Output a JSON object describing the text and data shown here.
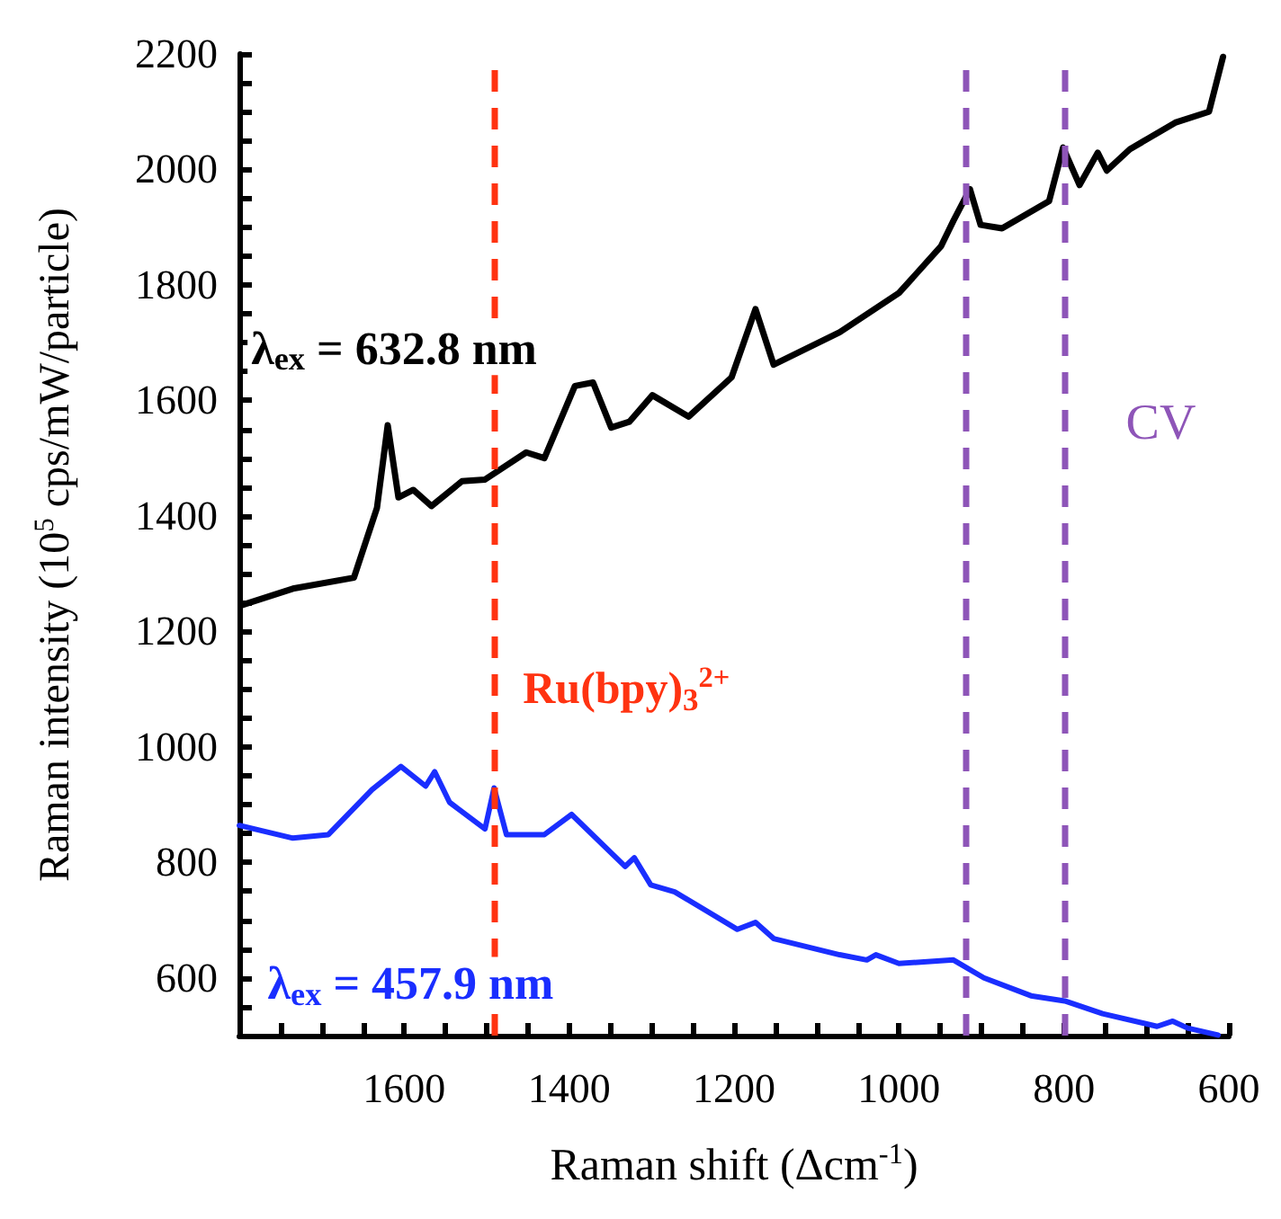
{
  "chart_data": {
    "type": "line",
    "xlabel": "Raman shift (Δcm$^{-1}$)",
    "ylabel": "Raman intensity (10$^{5}$ cps/mW/particle)",
    "xlim": [
      1800,
      600
    ],
    "ylim": [
      500,
      2200
    ],
    "xticks": [
      {
        "value": 1750,
        "label": null
      },
      {
        "value": 1700,
        "label": null
      },
      {
        "value": 1650,
        "label": null
      },
      1600,
      {
        "value": 1550,
        "label": null
      },
      {
        "value": 1500,
        "label": null
      },
      {
        "value": 1450,
        "label": null
      },
      1400,
      {
        "value": 1350,
        "label": null
      },
      {
        "value": 1300,
        "label": null
      },
      {
        "value": 1250,
        "label": null
      },
      1200,
      {
        "value": 1150,
        "label": null
      },
      {
        "value": 1100,
        "label": null
      },
      {
        "value": 1050,
        "label": null
      },
      1000,
      {
        "value": 950,
        "label": null
      },
      {
        "value": 900,
        "label": null
      },
      {
        "value": 850,
        "label": null
      },
      800,
      {
        "value": 750,
        "label": null
      },
      {
        "value": 700,
        "label": null
      },
      {
        "value": 650,
        "label": null
      },
      600
    ],
    "yticks": [
      {
        "value": 550,
        "label": null
      },
      600,
      {
        "value": 650,
        "label": null
      },
      {
        "value": 700,
        "label": null
      },
      {
        "value": 750,
        "label": null
      },
      800,
      {
        "value": 850,
        "label": null
      },
      {
        "value": 900,
        "label": null
      },
      {
        "value": 950,
        "label": null
      },
      1000,
      {
        "value": 1050,
        "label": null
      },
      {
        "value": 1100,
        "label": null
      },
      {
        "value": 1150,
        "label": null
      },
      1200,
      {
        "value": 1250,
        "label": null
      },
      {
        "value": 1300,
        "label": null
      },
      {
        "value": 1350,
        "label": null
      },
      1400,
      {
        "value": 1450,
        "label": null
      },
      {
        "value": 1500,
        "label": null
      },
      {
        "value": 1550,
        "label": null
      },
      1600,
      {
        "value": 1650,
        "label": null
      },
      {
        "value": 1700,
        "label": null
      },
      {
        "value": 1750,
        "label": null
      },
      1800,
      {
        "value": 1850,
        "label": null
      },
      {
        "value": 1900,
        "label": null
      },
      {
        "value": 1950,
        "label": null
      },
      2000,
      {
        "value": 2050,
        "label": null
      },
      {
        "value": 2100,
        "label": null
      },
      {
        "value": 2150,
        "label": null
      },
      2200
    ],
    "grid": false,
    "legend": false,
    "marker": "none",
    "line_style": "solid",
    "series": [
      {
        "name": "λ$_{ex}$ = 632.8 nm",
        "color": "#000000",
        "x": [
          1796,
          1735,
          1661,
          1633,
          1620,
          1607,
          1589,
          1567,
          1530,
          1502,
          1452,
          1430,
          1393,
          1371,
          1349,
          1327,
          1299,
          1255,
          1203,
          1174,
          1152,
          1072,
          1000,
          949,
          934,
          914,
          901,
          875,
          818,
          801,
          781,
          759,
          748,
          720,
          665,
          624,
          607
        ],
        "values": [
          1246,
          1274,
          1293,
          1414,
          1557,
          1432,
          1445,
          1417,
          1460,
          1463,
          1510,
          1500,
          1625,
          1631,
          1553,
          1563,
          1609,
          1572,
          1640,
          1758,
          1662,
          1718,
          1786,
          1867,
          1911,
          1966,
          1904,
          1898,
          1945,
          2038,
          1973,
          2029,
          1998,
          2035,
          2081,
          2100,
          2195
        ]
      },
      {
        "name": "λ$_{ex}$ = 457.9 nm",
        "color": "#1a2eff",
        "x": [
          1800,
          1735,
          1692,
          1639,
          1604,
          1574,
          1563,
          1545,
          1502,
          1491,
          1476,
          1430,
          1397,
          1332,
          1321,
          1301,
          1272,
          1196,
          1174,
          1152,
          1072,
          1039,
          1028,
          1000,
          934,
          897,
          840,
          799,
          753,
          687,
          668,
          650,
          613
        ],
        "values": [
          864,
          842,
          848,
          926,
          966,
          932,
          957,
          904,
          858,
          929,
          848,
          848,
          883,
          793,
          808,
          761,
          749,
          684,
          696,
          668,
          640,
          631,
          640,
          625,
          631,
          600,
          569,
          560,
          538,
          516,
          525,
          513,
          501
        ]
      }
    ],
    "ref_lines": [
      {
        "axis": "x",
        "value": 1491,
        "label": "Ru(bpy)$_{3}$$^{2+}$",
        "color": "#ff3311",
        "line_style": "dashed"
      },
      {
        "axis": "x",
        "value": 919,
        "label": null,
        "color": "#8e55b8",
        "line_style": "dashed"
      },
      {
        "axis": "x",
        "value": 799,
        "label": "CV",
        "color": "#8e55b8",
        "line_style": "dashed"
      }
    ]
  }
}
